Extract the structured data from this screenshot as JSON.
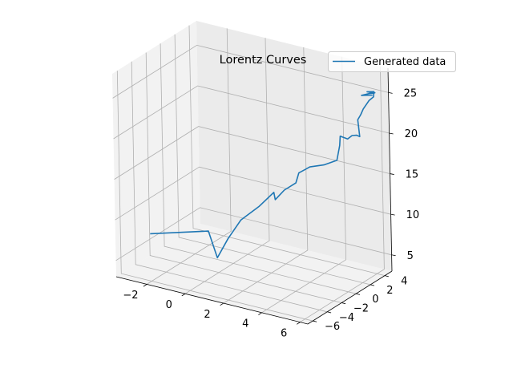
{
  "chart_data": {
    "type": "line",
    "projection": "3d",
    "title": "Lorentz Curves",
    "legend": {
      "placement": "top-right",
      "entries": [
        "Generated data"
      ]
    },
    "grid": true,
    "xlim": [
      -3.6,
      6.4
    ],
    "ylim": [
      -6.7,
      5.0
    ],
    "zlim": [
      3.0,
      28.0
    ],
    "xticks": [
      -2,
      0,
      2,
      4,
      6
    ],
    "yticks": [
      -6,
      -4,
      -2,
      0,
      2,
      4
    ],
    "zticks": [
      5,
      10,
      15,
      20,
      25
    ],
    "xticklabels": [
      "−2",
      "0",
      "2",
      "4",
      "6"
    ],
    "yticklabels": [
      "−6",
      "−4",
      "−2",
      "0",
      "2",
      "4"
    ],
    "zticklabels": [
      "5",
      "10",
      "15",
      "20",
      "25"
    ],
    "series": [
      {
        "name": "Generated data",
        "color": "#1f77b4",
        "x": [
          -3.42,
          -1.2,
          -0.3,
          -0.45,
          -0.1,
          0.5,
          1.05,
          1.0,
          1.6,
          2.1,
          2.15,
          2.7,
          3.4,
          4.2,
          4.4,
          4.55,
          4.9,
          5.25,
          5.45,
          5.65,
          5.6,
          5.8,
          5.75,
          5.95,
          6.15,
          6.1,
          5.7,
          6.3,
          6.2,
          5.9,
          6.25
        ],
        "y": [
          -2.4,
          -0.2,
          -1.4,
          0.5,
          1.4,
          2.4,
          3.0,
          3.3,
          3.0,
          3.3,
          3.6,
          3.7,
          3.8,
          3.5,
          3.4,
          3.1,
          3.2,
          2.9,
          3.0,
          2.9,
          2.8,
          2.7,
          3.2,
          3.5,
          3.6,
          3.8,
          3.9,
          3.4,
          3.0,
          2.6,
          3.2
        ],
        "z": [
          6.0,
          6.4,
          4.3,
          5.5,
          7.5,
          9.0,
          10.7,
          9.6,
          11.3,
          12.3,
          13.4,
          14.4,
          15.0,
          16.2,
          18.2,
          19.6,
          19.4,
          20.2,
          20.3,
          20.3,
          22.4,
          23.2,
          23.6,
          24.6,
          25.1,
          25.6,
          25.3,
          25.8,
          25.9,
          25.7,
          25.6
        ]
      }
    ]
  }
}
